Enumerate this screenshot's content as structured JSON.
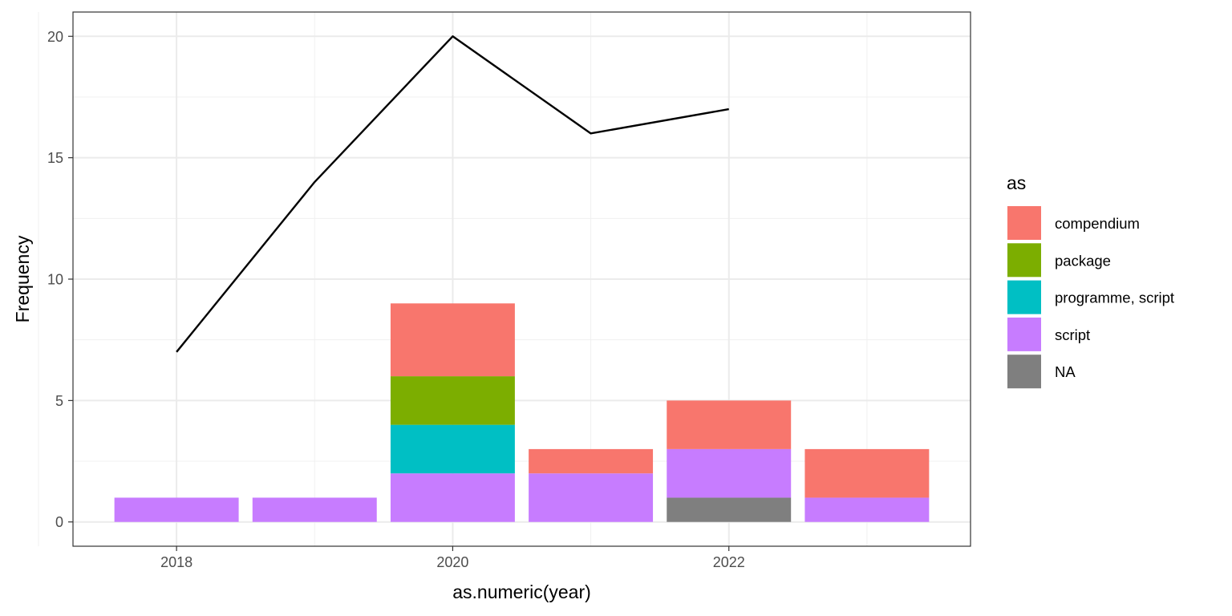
{
  "chart_data": {
    "type": "bar",
    "xlabel": "as.numeric(year)",
    "ylabel": "Frequency",
    "xlim": [
      2017.25,
      2023.75
    ],
    "ylim": [
      -1,
      21
    ],
    "x_ticks": [
      2018,
      2020,
      2022
    ],
    "y_ticks": [
      0,
      5,
      10,
      15,
      20
    ],
    "grid": true,
    "legend": {
      "title": "as",
      "position": "right",
      "entries": [
        {
          "key": "compendium",
          "label": "compendium",
          "color": "#F8766D"
        },
        {
          "key": "package",
          "label": "package",
          "color": "#7CAE00"
        },
        {
          "key": "programme, script",
          "label": "programme, script",
          "color": "#00BFC4"
        },
        {
          "key": "script",
          "label": "script",
          "color": "#C77CFF"
        },
        {
          "key": "NA",
          "label": "NA",
          "color": "#7F7F7F"
        }
      ]
    },
    "stack_order": [
      "NA",
      "script",
      "programme, script",
      "package",
      "compendium"
    ],
    "categories": [
      2018,
      2019,
      2020,
      2021,
      2022,
      2023
    ],
    "series": [
      {
        "name": "compendium",
        "values": [
          0,
          0,
          3,
          1,
          2,
          2
        ]
      },
      {
        "name": "package",
        "values": [
          0,
          0,
          2,
          0,
          0,
          0
        ]
      },
      {
        "name": "programme, script",
        "values": [
          0,
          0,
          2,
          0,
          0,
          0
        ]
      },
      {
        "name": "script",
        "values": [
          1,
          1,
          2,
          2,
          2,
          1
        ]
      },
      {
        "name": "NA",
        "values": [
          0,
          0,
          0,
          0,
          1,
          0
        ]
      }
    ],
    "line": {
      "color": "#000000",
      "x": [
        2018,
        2019,
        2020,
        2021,
        2022
      ],
      "y": [
        7,
        14,
        20,
        16,
        17
      ]
    }
  }
}
